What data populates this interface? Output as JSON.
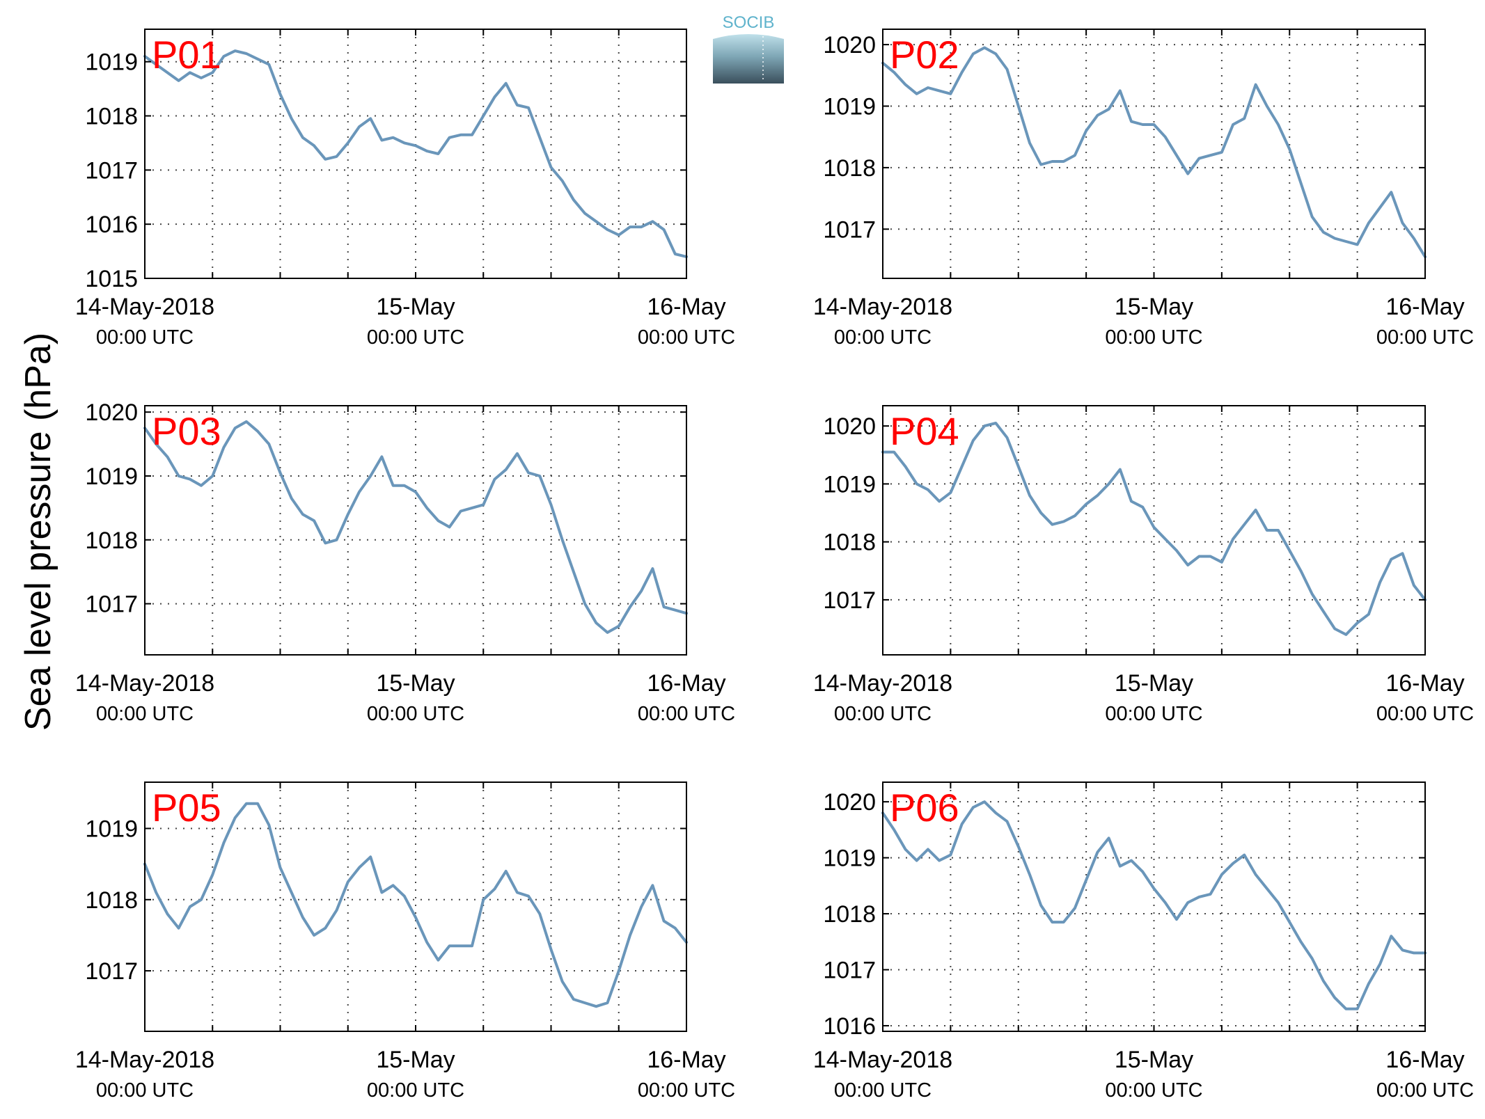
{
  "figure": {
    "ylabel": "Sea level pressure (hPa)",
    "logo_text": "SOCIB",
    "colors": {
      "line": "#6a96ba",
      "panel_label": "#ff0000",
      "axis": "#000000",
      "grid": "#444444"
    }
  },
  "chart_data": [
    {
      "type": "line",
      "panel_label": "P01",
      "x_range_hours": [
        0,
        48
      ],
      "xticks": [
        {
          "hour": 0,
          "line1": "14-May-2018",
          "line2": "00:00 UTC"
        },
        {
          "hour": 24,
          "line1": "15-May",
          "line2": "00:00 UTC"
        },
        {
          "hour": 48,
          "line1": "16-May",
          "line2": "00:00 UTC"
        }
      ],
      "minor_xticks_hours": [
        6,
        12,
        18,
        30,
        36,
        42
      ],
      "ylim": [
        1015,
        1019.6
      ],
      "yticks": [
        1015,
        1016,
        1017,
        1018,
        1019
      ],
      "grid": true,
      "series": [
        {
          "x": [
            0,
            1,
            2,
            3,
            4,
            5,
            6,
            7,
            8,
            9,
            10,
            11,
            12,
            13,
            14,
            15,
            16,
            17,
            18,
            19,
            20,
            21,
            22,
            23,
            24,
            25,
            26,
            27,
            28,
            29,
            30,
            31,
            32,
            33,
            34,
            35,
            36,
            37,
            38,
            39,
            40,
            41,
            42,
            43,
            44,
            45,
            46,
            47,
            48
          ],
          "y": [
            1019.1,
            1018.95,
            1018.8,
            1018.65,
            1018.8,
            1018.7,
            1018.8,
            1019.1,
            1019.2,
            1019.15,
            1019.05,
            1018.95,
            1018.4,
            1017.95,
            1017.6,
            1017.45,
            1017.2,
            1017.25,
            1017.5,
            1017.8,
            1017.95,
            1017.55,
            1017.6,
            1017.5,
            1017.45,
            1017.35,
            1017.3,
            1017.6,
            1017.65,
            1017.65,
            1018.0,
            1018.35,
            1018.6,
            1018.2,
            1018.15,
            1017.6,
            1017.05,
            1016.8,
            1016.45,
            1016.2,
            1016.05,
            1015.9,
            1015.8,
            1015.95,
            1015.95,
            1016.05,
            1015.9,
            1015.45,
            1015.4
          ]
        }
      ]
    },
    {
      "type": "line",
      "panel_label": "P02",
      "x_range_hours": [
        0,
        48
      ],
      "xticks": [
        {
          "hour": 0,
          "line1": "14-May-2018",
          "line2": "00:00 UTC"
        },
        {
          "hour": 24,
          "line1": "15-May",
          "line2": "00:00 UTC"
        },
        {
          "hour": 48,
          "line1": "16-May",
          "line2": "00:00 UTC"
        }
      ],
      "minor_xticks_hours": [
        6,
        12,
        18,
        30,
        36,
        42
      ],
      "ylim": [
        1016.2,
        1020.25
      ],
      "yticks": [
        1017,
        1018,
        1019,
        1020
      ],
      "grid": true,
      "series": [
        {
          "x": [
            0,
            1,
            2,
            3,
            4,
            5,
            6,
            7,
            8,
            9,
            10,
            11,
            12,
            13,
            14,
            15,
            16,
            17,
            18,
            19,
            20,
            21,
            22,
            23,
            24,
            25,
            26,
            27,
            28,
            29,
            30,
            31,
            32,
            33,
            34,
            35,
            36,
            37,
            38,
            39,
            40,
            41,
            42,
            43,
            44,
            45,
            46,
            47,
            48
          ],
          "y": [
            1019.7,
            1019.55,
            1019.35,
            1019.2,
            1019.3,
            1019.25,
            1019.2,
            1019.55,
            1019.85,
            1019.95,
            1019.85,
            1019.6,
            1019.0,
            1018.4,
            1018.05,
            1018.1,
            1018.1,
            1018.2,
            1018.6,
            1018.85,
            1018.95,
            1019.25,
            1018.75,
            1018.7,
            1018.7,
            1018.5,
            1018.2,
            1017.9,
            1018.15,
            1018.2,
            1018.25,
            1018.7,
            1018.8,
            1019.35,
            1019.0,
            1018.7,
            1018.3,
            1017.75,
            1017.2,
            1016.95,
            1016.85,
            1016.8,
            1016.75,
            1017.1,
            1017.35,
            1017.6,
            1017.1,
            1016.85,
            1016.55
          ]
        }
      ]
    },
    {
      "type": "line",
      "panel_label": "P03",
      "x_range_hours": [
        0,
        48
      ],
      "xticks": [
        {
          "hour": 0,
          "line1": "14-May-2018",
          "line2": "00:00 UTC"
        },
        {
          "hour": 24,
          "line1": "15-May",
          "line2": "00:00 UTC"
        },
        {
          "hour": 48,
          "line1": "16-May",
          "line2": "00:00 UTC"
        }
      ],
      "minor_xticks_hours": [
        6,
        12,
        18,
        30,
        36,
        42
      ],
      "ylim": [
        1016.2,
        1020.1
      ],
      "yticks": [
        1017,
        1018,
        1019,
        1020
      ],
      "grid": true,
      "series": [
        {
          "x": [
            0,
            1,
            2,
            3,
            4,
            5,
            6,
            7,
            8,
            9,
            10,
            11,
            12,
            13,
            14,
            15,
            16,
            17,
            18,
            19,
            20,
            21,
            22,
            23,
            24,
            25,
            26,
            27,
            28,
            29,
            30,
            31,
            32,
            33,
            34,
            35,
            36,
            37,
            38,
            39,
            40,
            41,
            42,
            43,
            44,
            45,
            46,
            47,
            48
          ],
          "y": [
            1019.75,
            1019.5,
            1019.3,
            1019.0,
            1018.95,
            1018.85,
            1019.0,
            1019.45,
            1019.75,
            1019.85,
            1019.7,
            1019.5,
            1019.05,
            1018.65,
            1018.4,
            1018.3,
            1017.95,
            1018.0,
            1018.4,
            1018.75,
            1019.0,
            1019.3,
            1018.85,
            1018.85,
            1018.75,
            1018.5,
            1018.3,
            1018.2,
            1018.45,
            1018.5,
            1018.55,
            1018.95,
            1019.1,
            1019.35,
            1019.05,
            1019.0,
            1018.55,
            1018.0,
            1017.5,
            1017.0,
            1016.7,
            1016.55,
            1016.65,
            1016.95,
            1017.2,
            1017.55,
            1016.95,
            1016.9,
            1016.85
          ]
        }
      ]
    },
    {
      "type": "line",
      "panel_label": "P04",
      "x_range_hours": [
        0,
        48
      ],
      "xticks": [
        {
          "hour": 0,
          "line1": "14-May-2018",
          "line2": "00:00 UTC"
        },
        {
          "hour": 24,
          "line1": "15-May",
          "line2": "00:00 UTC"
        },
        {
          "hour": 48,
          "line1": "16-May",
          "line2": "00:00 UTC"
        }
      ],
      "minor_xticks_hours": [
        6,
        12,
        18,
        30,
        36,
        42
      ],
      "ylim": [
        1016.05,
        1020.35
      ],
      "yticks": [
        1017,
        1018,
        1019,
        1020
      ],
      "grid": true,
      "series": [
        {
          "x": [
            0,
            1,
            2,
            3,
            4,
            5,
            6,
            7,
            8,
            9,
            10,
            11,
            12,
            13,
            14,
            15,
            16,
            17,
            18,
            19,
            20,
            21,
            22,
            23,
            24,
            25,
            26,
            27,
            28,
            29,
            30,
            31,
            32,
            33,
            34,
            35,
            36,
            37,
            38,
            39,
            40,
            41,
            42,
            43,
            44,
            45,
            46,
            47,
            48
          ],
          "y": [
            1019.55,
            1019.55,
            1019.3,
            1019.0,
            1018.9,
            1018.7,
            1018.85,
            1019.3,
            1019.75,
            1020.0,
            1020.05,
            1019.8,
            1019.3,
            1018.8,
            1018.5,
            1018.3,
            1018.35,
            1018.45,
            1018.65,
            1018.8,
            1019.0,
            1019.25,
            1018.7,
            1018.6,
            1018.25,
            1018.05,
            1017.85,
            1017.6,
            1017.75,
            1017.75,
            1017.65,
            1018.05,
            1018.3,
            1018.55,
            1018.2,
            1018.2,
            1017.85,
            1017.5,
            1017.1,
            1016.8,
            1016.5,
            1016.4,
            1016.6,
            1016.75,
            1017.3,
            1017.7,
            1017.8,
            1017.25,
            1017.0
          ]
        }
      ]
    },
    {
      "type": "line",
      "panel_label": "P05",
      "x_range_hours": [
        0,
        48
      ],
      "xticks": [
        {
          "hour": 0,
          "line1": "14-May-2018",
          "line2": "00:00 UTC"
        },
        {
          "hour": 24,
          "line1": "15-May",
          "line2": "00:00 UTC"
        },
        {
          "hour": 48,
          "line1": "16-May",
          "line2": "00:00 UTC"
        }
      ],
      "minor_xticks_hours": [
        6,
        12,
        18,
        30,
        36,
        42
      ],
      "ylim": [
        1016.15,
        1019.65
      ],
      "yticks": [
        1017,
        1018,
        1019
      ],
      "grid": true,
      "series": [
        {
          "x": [
            0,
            1,
            2,
            3,
            4,
            5,
            6,
            7,
            8,
            9,
            10,
            11,
            12,
            13,
            14,
            15,
            16,
            17,
            18,
            19,
            20,
            21,
            22,
            23,
            24,
            25,
            26,
            27,
            28,
            29,
            30,
            31,
            32,
            33,
            34,
            35,
            36,
            37,
            38,
            39,
            40,
            41,
            42,
            43,
            44,
            45,
            46,
            47,
            48
          ],
          "y": [
            1018.5,
            1018.1,
            1017.8,
            1017.6,
            1017.9,
            1018.0,
            1018.35,
            1018.8,
            1019.15,
            1019.35,
            1019.35,
            1019.05,
            1018.45,
            1018.1,
            1017.75,
            1017.5,
            1017.6,
            1017.85,
            1018.25,
            1018.45,
            1018.6,
            1018.1,
            1018.2,
            1018.05,
            1017.75,
            1017.4,
            1017.15,
            1017.35,
            1017.35,
            1017.35,
            1018.0,
            1018.15,
            1018.4,
            1018.1,
            1018.05,
            1017.8,
            1017.3,
            1016.85,
            1016.6,
            1016.55,
            1016.5,
            1016.55,
            1017.0,
            1017.5,
            1017.9,
            1018.2,
            1017.7,
            1017.6,
            1017.4
          ]
        }
      ]
    },
    {
      "type": "line",
      "panel_label": "P06",
      "x_range_hours": [
        0,
        48
      ],
      "xticks": [
        {
          "hour": 0,
          "line1": "14-May-2018",
          "line2": "00:00 UTC"
        },
        {
          "hour": 24,
          "line1": "15-May",
          "line2": "00:00 UTC"
        },
        {
          "hour": 48,
          "line1": "16-May",
          "line2": "00:00 UTC"
        }
      ],
      "minor_xticks_hours": [
        6,
        12,
        18,
        30,
        36,
        42
      ],
      "ylim": [
        1015.9,
        1020.35
      ],
      "yticks": [
        1016,
        1017,
        1018,
        1019,
        1020
      ],
      "grid": true,
      "series": [
        {
          "x": [
            0,
            1,
            2,
            3,
            4,
            5,
            6,
            7,
            8,
            9,
            10,
            11,
            12,
            13,
            14,
            15,
            16,
            17,
            18,
            19,
            20,
            21,
            22,
            23,
            24,
            25,
            26,
            27,
            28,
            29,
            30,
            31,
            32,
            33,
            34,
            35,
            36,
            37,
            38,
            39,
            40,
            41,
            42,
            43,
            44,
            45,
            46,
            47,
            48
          ],
          "y": [
            1019.8,
            1019.5,
            1019.15,
            1018.95,
            1019.15,
            1018.95,
            1019.05,
            1019.6,
            1019.9,
            1020.0,
            1019.8,
            1019.65,
            1019.2,
            1018.7,
            1018.15,
            1017.85,
            1017.85,
            1018.1,
            1018.6,
            1019.1,
            1019.35,
            1018.85,
            1018.95,
            1018.75,
            1018.45,
            1018.2,
            1017.9,
            1018.2,
            1018.3,
            1018.35,
            1018.7,
            1018.9,
            1019.05,
            1018.7,
            1018.45,
            1018.2,
            1017.85,
            1017.5,
            1017.2,
            1016.8,
            1016.5,
            1016.3,
            1016.3,
            1016.75,
            1017.1,
            1017.6,
            1017.35,
            1017.3,
            1017.3
          ]
        }
      ]
    }
  ]
}
